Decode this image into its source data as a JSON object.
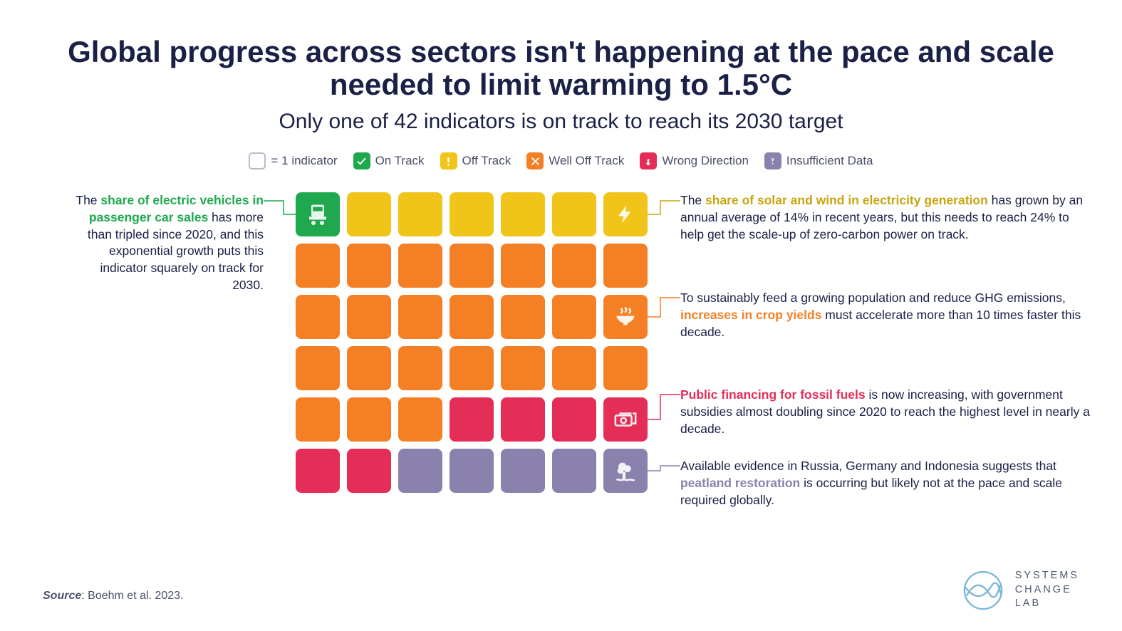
{
  "title": "Global progress across sectors isn't happening at the pace and scale needed to limit warming to 1.5°C",
  "title_fontsize": 42,
  "subtitle": "Only one of 42 indicators is on track to reach its 2030 target",
  "subtitle_fontsize": 30,
  "legend": {
    "indicator_label": "= 1 indicator",
    "items": [
      {
        "key": "on_track",
        "label": "On Track",
        "color": "#1fa84d",
        "glyph": "check"
      },
      {
        "key": "off_track",
        "label": "Off Track",
        "color": "#f0c419",
        "glyph": "exclaim"
      },
      {
        "key": "well_off",
        "label": "Well Off Track",
        "color": "#f57f25",
        "glyph": "x"
      },
      {
        "key": "wrong_dir",
        "label": "Wrong Direction",
        "color": "#e42d57",
        "glyph": "uturn"
      },
      {
        "key": "insufficient",
        "label": "Insufficient Data",
        "color": "#8a81ad",
        "glyph": "question"
      }
    ]
  },
  "grid": {
    "type": "waffle",
    "cols": 7,
    "rows": 6,
    "cell_size": 62,
    "gap": 10,
    "corner_radius": 8,
    "colors": {
      "on_track": "#1fa84d",
      "off_track": "#f0c419",
      "well_off": "#f57f25",
      "wrong_dir": "#e42d57",
      "insufficient": "#8a81ad"
    },
    "rows_data": [
      [
        "on_track",
        "off_track",
        "off_track",
        "off_track",
        "off_track",
        "off_track",
        "off_track"
      ],
      [
        "well_off",
        "well_off",
        "well_off",
        "well_off",
        "well_off",
        "well_off",
        "well_off"
      ],
      [
        "well_off",
        "well_off",
        "well_off",
        "well_off",
        "well_off",
        "well_off",
        "well_off"
      ],
      [
        "well_off",
        "well_off",
        "well_off",
        "well_off",
        "well_off",
        "well_off",
        "well_off"
      ],
      [
        "well_off",
        "well_off",
        "well_off",
        "wrong_dir",
        "wrong_dir",
        "wrong_dir",
        "wrong_dir"
      ],
      [
        "wrong_dir",
        "wrong_dir",
        "insufficient",
        "insufficient",
        "insufficient",
        "insufficient",
        "insufficient"
      ]
    ],
    "icons": {
      "0,0": "ev",
      "0,6": "bolt",
      "2,6": "bowl",
      "4,6": "money",
      "5,6": "tree"
    }
  },
  "annotations": {
    "left_ev": {
      "pre": "The ",
      "highlight": "share of electric vehicles in passenger car sales",
      "post": " has more than tripled since 2020, and this exponential growth puts this indicator squarely on track for 2030.",
      "highlight_color": "#1fa84d"
    },
    "right_solar": {
      "pre": "The ",
      "highlight": "share of solar and wind in electricity generation",
      "post": " has grown by an annual average of 14% in recent years, but this needs to reach 24% to help get the scale-up of zero-carbon power on track.",
      "highlight_color": "#c9a50f"
    },
    "right_crop": {
      "pre": "To sustainably feed a growing population and reduce GHG emissions, ",
      "highlight": "increases in crop yields",
      "post": " must accelerate more than 10 times faster this decade.",
      "highlight_color": "#f57f25"
    },
    "right_fossil": {
      "pre": "",
      "highlight": "Public financing for fossil fuels",
      "post": " is now increasing, with government subsidies almost doubling since 2020 to reach the highest level in nearly a decade.",
      "highlight_color": "#e42d57"
    },
    "right_peat": {
      "pre": "Available evidence in Russia, Germany and Indonesia suggests that ",
      "highlight": "peatland restoration",
      "post": " is occurring but likely not at the pace and scale required globally.",
      "highlight_color": "#8a81ad"
    }
  },
  "connector_colors": {
    "ev": "#1fa84d",
    "solar": "#c9a50f",
    "crop": "#f57f25",
    "fossil": "#e42d57",
    "peat": "#8a81ad"
  },
  "source_label": "Source",
  "source_text": ": Boehm et al. 2023.",
  "brand": {
    "line1": "SYSTEMS",
    "line2": "CHANGE",
    "line3": "LAB",
    "color": "#505a70",
    "circle_color": "#7fb8d8"
  },
  "background_color": "#ffffff",
  "text_color": "#1a2046"
}
